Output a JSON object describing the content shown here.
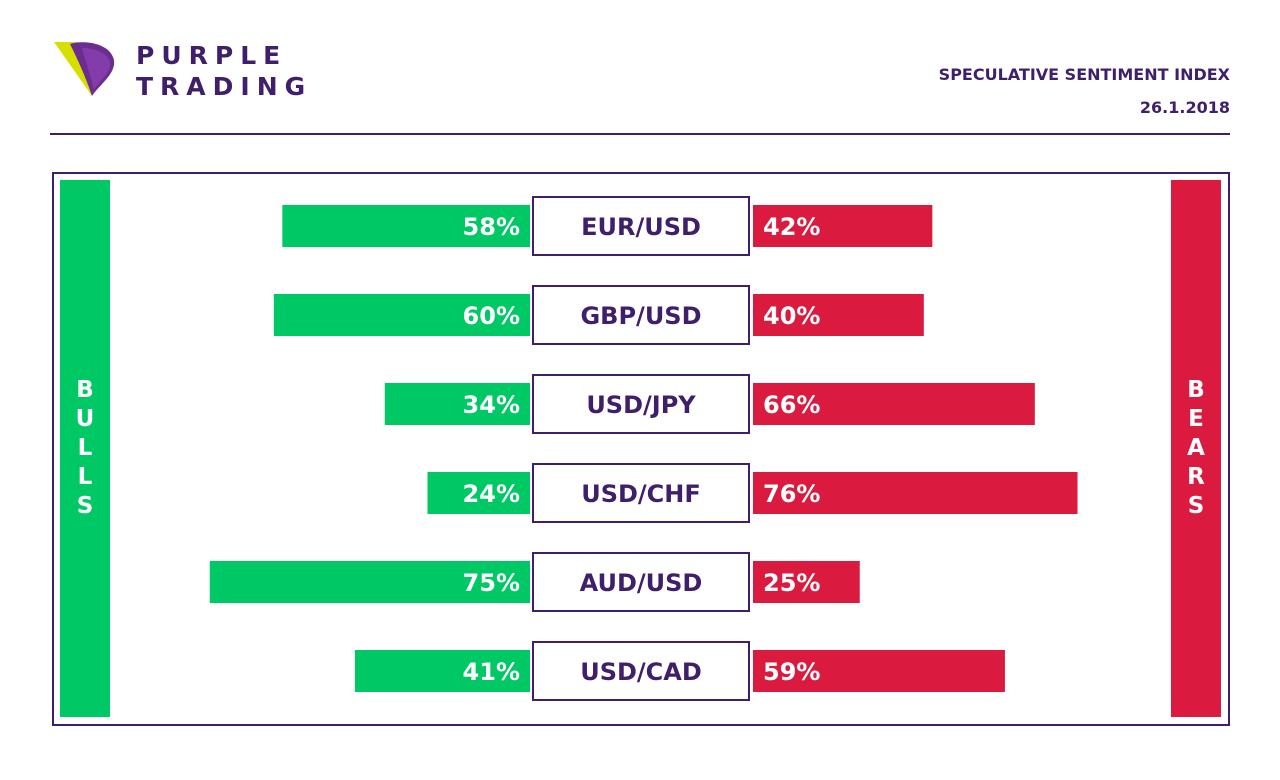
{
  "brand": {
    "line1": "PURPLE",
    "line2": "TRADING",
    "colors": {
      "purple": "#3f1f6b",
      "yellow": "#d6e000"
    }
  },
  "header": {
    "title": "SPECULATIVE SENTIMENT INDEX",
    "date": "26.1.2018"
  },
  "sides": {
    "bulls_label": "BULLS",
    "bears_label": "BEARS",
    "bulls_color": "#00c865",
    "bears_color": "#da1a3e"
  },
  "chart_data": {
    "type": "bar",
    "categories": [
      "EUR/USD",
      "GBP/USD",
      "USD/JPY",
      "USD/CHF",
      "AUD/USD",
      "USD/CAD"
    ],
    "series": [
      {
        "name": "BULLS",
        "values": [
          58,
          60,
          34,
          24,
          75,
          41
        ],
        "color": "#00c865"
      },
      {
        "name": "BEARS",
        "values": [
          42,
          40,
          66,
          76,
          25,
          59
        ],
        "color": "#da1a3e"
      }
    ],
    "value_format": "{v}%",
    "orientation": "horizontal-diverging",
    "title": "SPECULATIVE SENTIMENT INDEX",
    "legend": "sides"
  }
}
